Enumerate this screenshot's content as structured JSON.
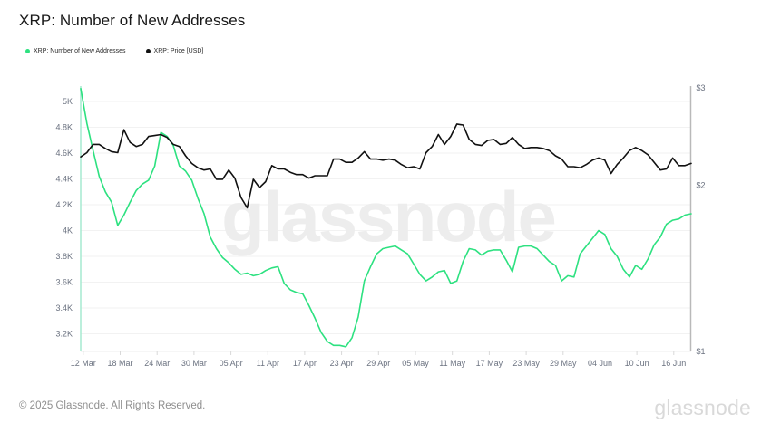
{
  "title": "XRP: Number of New Addresses",
  "legend": [
    {
      "label": "XRP: Number of New Addresses",
      "color": "#2de180"
    },
    {
      "label": "XRP: Price [USD]",
      "color": "#111111"
    }
  ],
  "watermark": "glassnode",
  "footer": {
    "copyright": "© 2025 Glassnode. All Rights Reserved.",
    "logo": "glassnode"
  },
  "colors": {
    "accent_green": "#2de180",
    "price_black": "#111111",
    "grid": "#f2f2f2",
    "left_axis_line": "#a5ead0",
    "right_axis_line": "#b9b9b9",
    "bottom_axis_line": "#ececec",
    "tick_mark": "#d9d9d9",
    "tick_label": "#6b7280",
    "watermark": "#ededed"
  },
  "chart_data": {
    "type": "line",
    "title": "XRP: Number of New Addresses",
    "x_tick_labels": [
      "12 Mar",
      "18 Mar",
      "24 Mar",
      "30 Mar",
      "05 Apr",
      "11 Apr",
      "17 Apr",
      "23 Apr",
      "29 Apr",
      "05 May",
      "11 May",
      "17 May",
      "23 May",
      "29 May",
      "04 Jun",
      "10 Jun",
      "16 Jun"
    ],
    "left_axis": {
      "title": "New Addresses",
      "scale": "linear",
      "unit": "K",
      "tick_labels": [
        "5K",
        "4.8K",
        "4.6K",
        "4.4K",
        "4.2K",
        "4K",
        "3.8K",
        "3.6K",
        "3.4K",
        "3.2K"
      ],
      "tick_values": [
        5,
        4.8,
        4.6,
        4.4,
        4.2,
        4,
        3.8,
        3.6,
        3.4,
        3.2
      ],
      "range": [
        3.06,
        5.12
      ]
    },
    "right_axis": {
      "title": "Price USD",
      "scale": "log",
      "unit": "$",
      "tick_labels": [
        "$3",
        "$2",
        "$1"
      ],
      "tick_values": [
        3,
        2,
        1
      ],
      "range": [
        1,
        3
      ]
    },
    "grid": "horizontal-only",
    "legend_position": "top-left",
    "series": [
      {
        "name": "XRP: Number of New Addresses",
        "axis": "left",
        "unit": "K",
        "color": "#2de180",
        "values": [
          5.1,
          4.83,
          4.62,
          4.42,
          4.3,
          4.22,
          4.04,
          4.12,
          4.22,
          4.31,
          4.36,
          4.39,
          4.5,
          4.76,
          4.73,
          4.66,
          4.5,
          4.46,
          4.39,
          4.25,
          4.13,
          3.95,
          3.86,
          3.79,
          3.75,
          3.7,
          3.66,
          3.67,
          3.65,
          3.66,
          3.69,
          3.71,
          3.72,
          3.59,
          3.54,
          3.52,
          3.51,
          3.42,
          3.32,
          3.21,
          3.14,
          3.11,
          3.11,
          3.1,
          3.17,
          3.33,
          3.61,
          3.72,
          3.82,
          3.86,
          3.87,
          3.88,
          3.85,
          3.82,
          3.74,
          3.66,
          3.61,
          3.64,
          3.68,
          3.69,
          3.59,
          3.61,
          3.76,
          3.86,
          3.85,
          3.81,
          3.84,
          3.85,
          3.85,
          3.77,
          3.68,
          3.87,
          3.88,
          3.88,
          3.86,
          3.81,
          3.76,
          3.73,
          3.61,
          3.65,
          3.64,
          3.82,
          3.88,
          3.94,
          4.0,
          3.97,
          3.86,
          3.8,
          3.7,
          3.64,
          3.73,
          3.7,
          3.78,
          3.89,
          3.95,
          4.05,
          4.08,
          4.09,
          4.12,
          4.13
        ]
      },
      {
        "name": "XRP: Price [USD]",
        "axis": "right",
        "unit": "USD",
        "color": "#111111",
        "values": [
          2.25,
          2.29,
          2.37,
          2.37,
          2.33,
          2.3,
          2.29,
          2.52,
          2.39,
          2.35,
          2.37,
          2.45,
          2.46,
          2.47,
          2.44,
          2.37,
          2.35,
          2.26,
          2.19,
          2.15,
          2.13,
          2.14,
          2.05,
          2.05,
          2.13,
          2.06,
          1.9,
          1.82,
          2.05,
          1.98,
          2.03,
          2.17,
          2.14,
          2.14,
          2.11,
          2.09,
          2.09,
          2.06,
          2.08,
          2.08,
          2.08,
          2.23,
          2.23,
          2.2,
          2.2,
          2.24,
          2.3,
          2.23,
          2.23,
          2.22,
          2.23,
          2.22,
          2.18,
          2.15,
          2.16,
          2.14,
          2.29,
          2.35,
          2.47,
          2.37,
          2.45,
          2.58,
          2.57,
          2.42,
          2.37,
          2.36,
          2.41,
          2.42,
          2.37,
          2.38,
          2.44,
          2.37,
          2.33,
          2.34,
          2.34,
          2.33,
          2.31,
          2.26,
          2.23,
          2.16,
          2.16,
          2.15,
          2.18,
          2.22,
          2.24,
          2.22,
          2.1,
          2.18,
          2.24,
          2.31,
          2.34,
          2.31,
          2.27,
          2.2,
          2.13,
          2.14,
          2.24,
          2.17,
          2.17,
          2.19
        ]
      }
    ]
  }
}
